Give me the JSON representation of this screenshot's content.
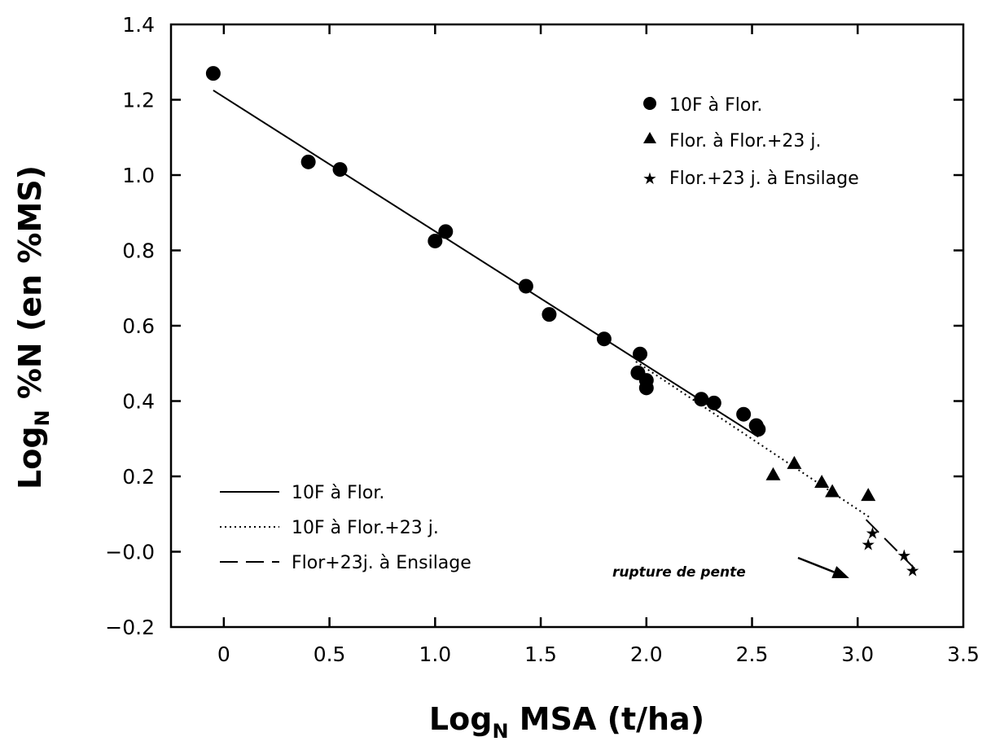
{
  "chart_data": {
    "type": "scatter",
    "title": "",
    "xlabel": {
      "main": "Log",
      "sub": "N",
      "rest": " MSA (t/ha)"
    },
    "ylabel": {
      "main": "Log",
      "sub": "N",
      "rest": " %N (en %MS)"
    },
    "xlim": [
      -0.25,
      3.5
    ],
    "ylim": [
      -0.2,
      1.4
    ],
    "x_ticks": [
      0,
      0.5,
      1.0,
      1.5,
      2.0,
      2.5,
      3.0,
      3.5
    ],
    "x_tick_labels": [
      "0",
      "0.5",
      "1.0",
      "1.5",
      "2.0",
      "2.5",
      "3.0",
      "3.5"
    ],
    "y_ticks": [
      -0.2,
      0.0,
      0.2,
      0.4,
      0.6,
      0.8,
      1.0,
      1.2,
      1.4
    ],
    "y_tick_labels": [
      "−0.2",
      "−0.0",
      "0.2",
      "0.4",
      "0.6",
      "0.8",
      "1.0",
      "1.2",
      "1.4"
    ],
    "grid": false,
    "series": [
      {
        "name": "10F à Flor.",
        "marker": "circle",
        "points": [
          [
            -0.05,
            1.27
          ],
          [
            0.4,
            1.035
          ],
          [
            0.55,
            1.015
          ],
          [
            1.0,
            0.825
          ],
          [
            1.05,
            0.85
          ],
          [
            1.43,
            0.705
          ],
          [
            1.54,
            0.63
          ],
          [
            1.8,
            0.565
          ],
          [
            1.96,
            0.475
          ],
          [
            1.97,
            0.525
          ],
          [
            2.0,
            0.435
          ],
          [
            2.0,
            0.455
          ],
          [
            2.26,
            0.405
          ],
          [
            2.32,
            0.395
          ],
          [
            2.46,
            0.365
          ],
          [
            2.52,
            0.335
          ],
          [
            2.53,
            0.325
          ]
        ]
      },
      {
        "name": "Flor. à Flor.+23 j.",
        "marker": "triangle",
        "points": [
          [
            2.6,
            0.205
          ],
          [
            2.7,
            0.235
          ],
          [
            2.83,
            0.185
          ],
          [
            2.88,
            0.16
          ],
          [
            3.05,
            0.15
          ]
        ]
      },
      {
        "name": "Flor.+23 j. à Ensilage",
        "marker": "star",
        "points": [
          [
            3.05,
            0.02
          ],
          [
            3.07,
            0.05
          ],
          [
            3.22,
            -0.01
          ],
          [
            3.26,
            -0.05
          ]
        ]
      }
    ],
    "lines": [
      {
        "name": "10F à Flor.",
        "style": "solid",
        "from": [
          -0.05,
          1.225
        ],
        "to": [
          2.53,
          0.305
        ]
      },
      {
        "name": "10F à Flor.+23 j.",
        "style": "dotted",
        "from": [
          1.95,
          0.505
        ],
        "to": [
          3.06,
          0.09
        ]
      },
      {
        "name": "Flor+23j. à Ensilage",
        "style": "dashed",
        "from": [
          3.04,
          0.085
        ],
        "to": [
          3.27,
          -0.045
        ]
      }
    ],
    "marker_legend_position": "top-right",
    "line_legend_position": "bottom-left",
    "annotation": {
      "text": "rupture de pente",
      "target": [
        2.96,
        -0.07
      ],
      "position": [
        2.28,
        -0.07
      ]
    }
  }
}
